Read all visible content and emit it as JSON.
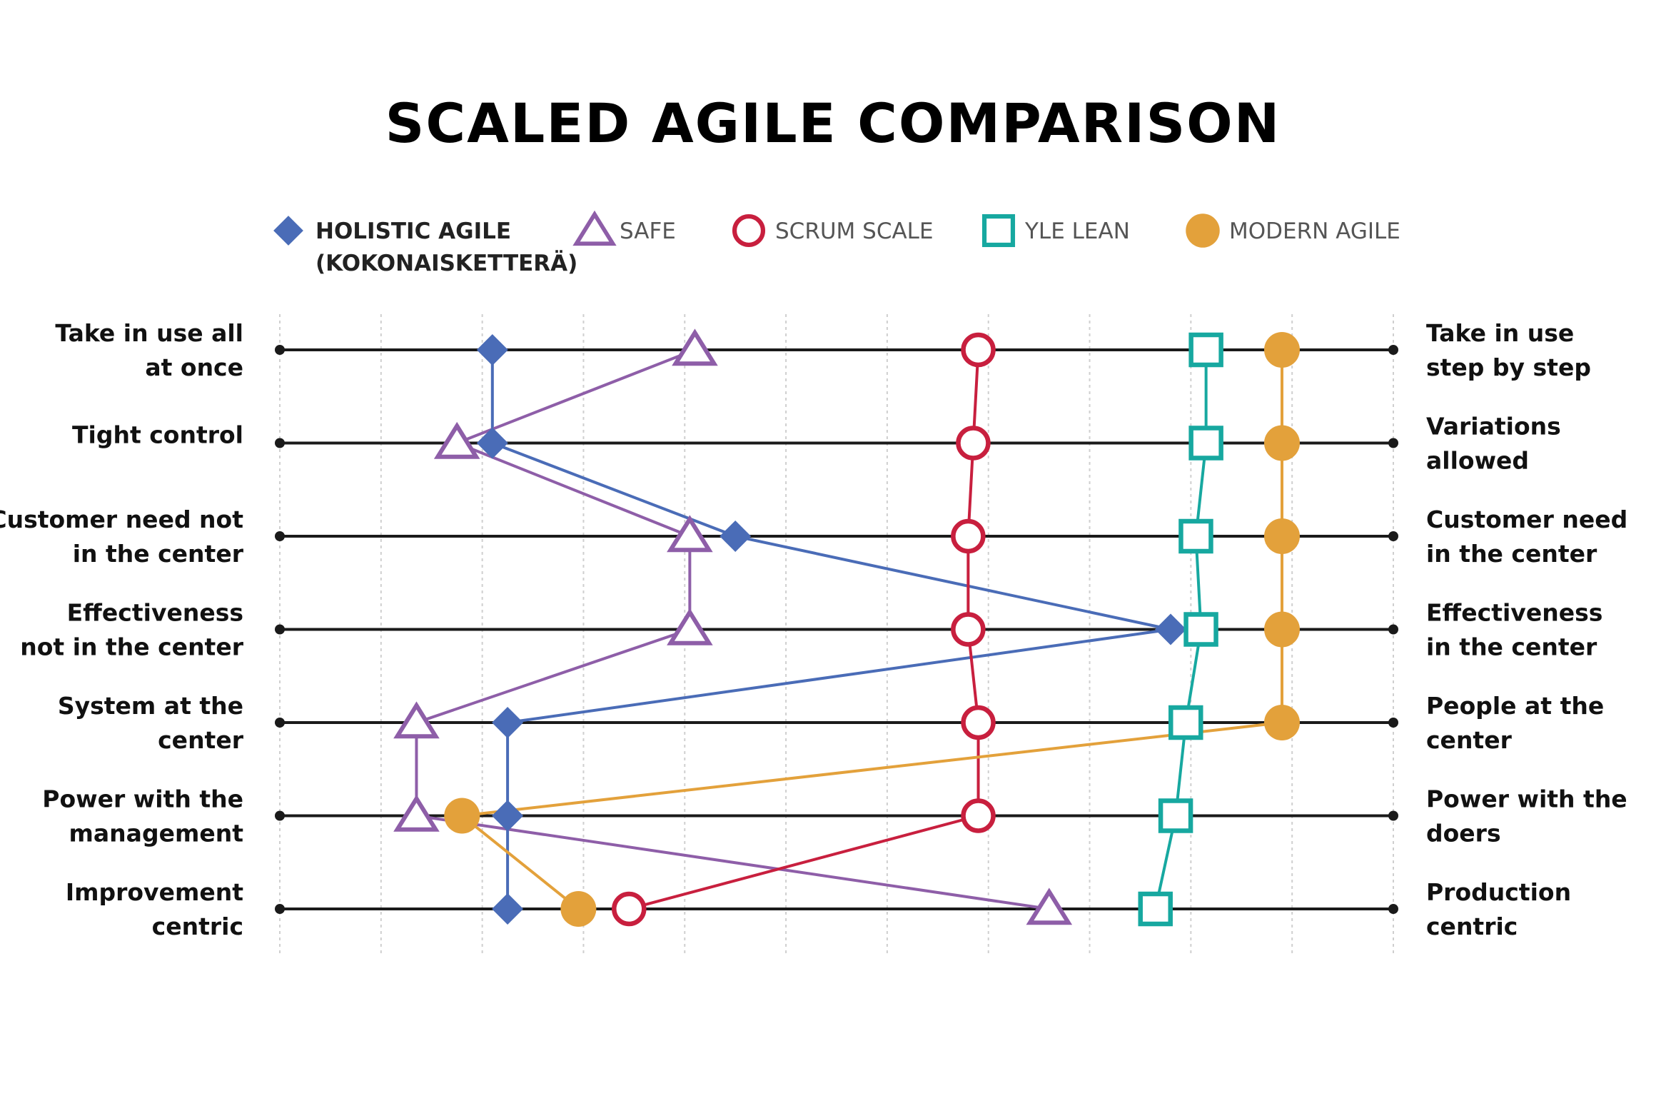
{
  "title": "SCALED AGILE COMPARISON",
  "colors": {
    "holistic": "#4a6cb7",
    "safe": "#8e5ea8",
    "scrum": "#c81f3e",
    "yle": "#17a8a0",
    "modern": "#e3a13b",
    "axis": "#1a1a1a",
    "grid": "#cfcfcf"
  },
  "chart_data": {
    "type": "line",
    "title": "SCALED AGILE COMPARISON",
    "xlim": [
      0,
      11
    ],
    "grid": true,
    "legend_position": "top",
    "rows": [
      {
        "left": [
          "Take in use all",
          "at once"
        ],
        "right": [
          "Take in use",
          "step by step"
        ]
      },
      {
        "left": [
          "Tight control"
        ],
        "right": [
          "Variations",
          "allowed"
        ]
      },
      {
        "left": [
          "Customer need not",
          "in the center"
        ],
        "right": [
          "Customer need",
          "in the center"
        ]
      },
      {
        "left": [
          "Effectiveness",
          "not in the center"
        ],
        "right": [
          "Effectiveness",
          "in the center"
        ]
      },
      {
        "left": [
          "System at the",
          "center"
        ],
        "right": [
          "People at the",
          "center"
        ]
      },
      {
        "left": [
          "Power with the",
          "management"
        ],
        "right": [
          "Power with the",
          "doers"
        ]
      },
      {
        "left": [
          "Improvement",
          "centric"
        ],
        "right": [
          "Production",
          "centric"
        ]
      }
    ],
    "series": [
      {
        "key": "holistic",
        "name_lines": [
          "HOLISTIC AGILE",
          "(KOKONAISKETTERÄ)"
        ],
        "marker": "diamond",
        "values": [
          2.1,
          2.1,
          4.5,
          8.8,
          2.25,
          2.25,
          2.25
        ]
      },
      {
        "key": "safe",
        "name_lines": [
          "SAFE"
        ],
        "marker": "triangle",
        "values": [
          4.1,
          1.75,
          4.05,
          4.05,
          1.35,
          1.35,
          7.6
        ]
      },
      {
        "key": "scrum",
        "name_lines": [
          "SCRUM SCALE"
        ],
        "marker": "circle-open",
        "values": [
          6.9,
          6.85,
          6.8,
          6.8,
          6.9,
          6.9,
          3.45
        ]
      },
      {
        "key": "yle",
        "name_lines": [
          "YLE LEAN"
        ],
        "marker": "square-open",
        "values": [
          9.15,
          9.15,
          9.05,
          9.1,
          8.95,
          8.85,
          8.65
        ]
      },
      {
        "key": "modern",
        "name_lines": [
          "MODERN AGILE"
        ],
        "marker": "circle-filled",
        "values": [
          9.9,
          9.9,
          9.9,
          9.9,
          9.9,
          1.8,
          2.95
        ]
      }
    ]
  }
}
